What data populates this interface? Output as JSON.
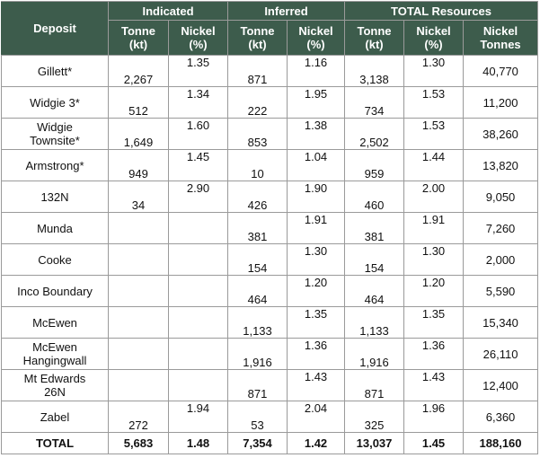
{
  "header": {
    "deposit": "Deposit",
    "groups": [
      "Indicated",
      "Inferred",
      "TOTAL Resources"
    ],
    "subheaders": [
      [
        "Tonne",
        "(kt)"
      ],
      [
        "Nickel",
        "(%)"
      ],
      [
        "Tonne",
        "(kt)"
      ],
      [
        "Nickel",
        "(%)"
      ],
      [
        "Tonne",
        "(kt)"
      ],
      [
        "Nickel",
        "(%)"
      ],
      [
        "Nickel",
        "Tonnes"
      ]
    ]
  },
  "rows": [
    {
      "name": [
        "Gillett*"
      ],
      "cells": [
        "2,267",
        "1.35",
        "871",
        "1.16",
        "3,138",
        "1.30",
        "40,770"
      ]
    },
    {
      "name": [
        "Widgie 3*"
      ],
      "cells": [
        "512",
        "1.34",
        "222",
        "1.95",
        "734",
        "1.53",
        "11,200"
      ]
    },
    {
      "name": [
        "Widgie",
        "Townsite*"
      ],
      "cells": [
        "1,649",
        "1.60",
        "853",
        "1.38",
        "2,502",
        "1.53",
        "38,260"
      ]
    },
    {
      "name": [
        "Armstrong*"
      ],
      "cells": [
        "949",
        "1.45",
        "10",
        "1.04",
        "959",
        "1.44",
        "13,820"
      ]
    },
    {
      "name": [
        "132N"
      ],
      "cells": [
        "34",
        "2.90",
        "426",
        "1.90",
        "460",
        "2.00",
        "9,050"
      ]
    },
    {
      "name": [
        "Munda"
      ],
      "cells": [
        "",
        "",
        "381",
        "1.91",
        "381",
        "1.91",
        "7,260"
      ]
    },
    {
      "name": [
        "Cooke"
      ],
      "cells": [
        "",
        "",
        "154",
        "1.30",
        "154",
        "1.30",
        "2,000"
      ]
    },
    {
      "name": [
        "Inco Boundary"
      ],
      "cells": [
        "",
        "",
        "464",
        "1.20",
        "464",
        "1.20",
        "5,590"
      ]
    },
    {
      "name": [
        "McEwen"
      ],
      "cells": [
        "",
        "",
        "1,133",
        "1.35",
        "1,133",
        "1.35",
        "15,340"
      ]
    },
    {
      "name": [
        "McEwen",
        "Hangingwall"
      ],
      "cells": [
        "",
        "",
        "1,916",
        "1.36",
        "1,916",
        "1.36",
        "26,110"
      ]
    },
    {
      "name": [
        "Mt Edwards",
        "26N"
      ],
      "cells": [
        "",
        "",
        "871",
        "1.43",
        "871",
        "1.43",
        "12,400"
      ]
    },
    {
      "name": [
        "Zabel"
      ],
      "cells": [
        "272",
        "1.94",
        "53",
        "2.04",
        "325",
        "1.96",
        "6,360"
      ]
    }
  ],
  "total": {
    "name": "TOTAL",
    "cells": [
      "5,683",
      "1.48",
      "7,354",
      "1.42",
      "13,037",
      "1.45",
      "188,160"
    ]
  },
  "colors": {
    "header_bg": "#3d5c4c",
    "header_text": "#ffffff",
    "grid": "#9a9a9a"
  }
}
